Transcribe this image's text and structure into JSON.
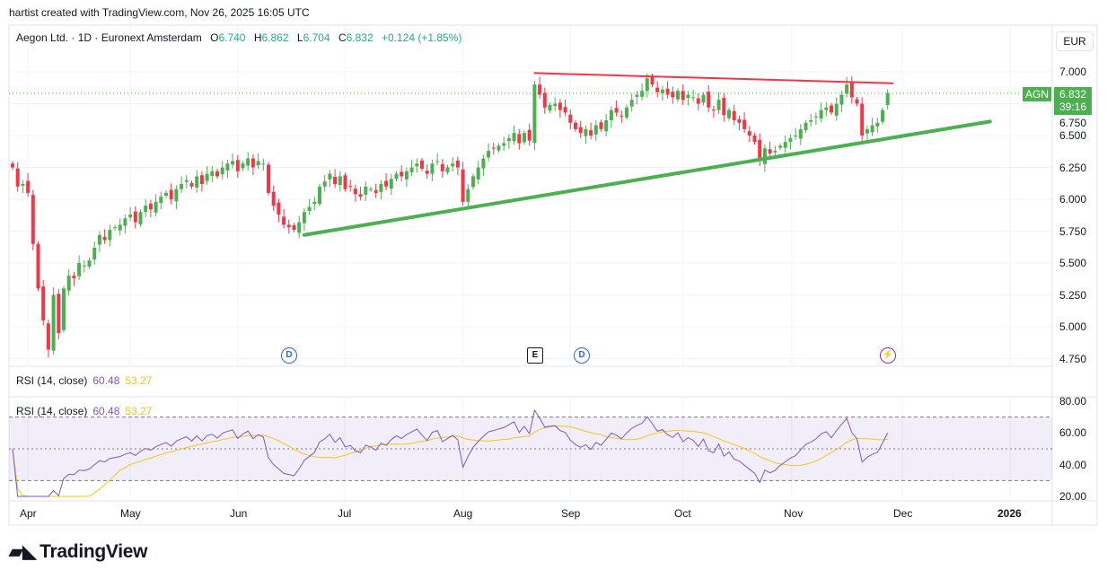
{
  "credit": "hartist created with TradingView.com, Nov 26, 2025 16:05 UTC",
  "header": {
    "symbol_title": "Aegon Ltd. · 1D · Euronext Amsterdam",
    "open_label": "O",
    "open": "6.740",
    "high_label": "H",
    "high": "6.862",
    "low_label": "L",
    "low": "6.704",
    "close_label": "C",
    "close": "6.832",
    "change": "+0.124 (+1.85%)"
  },
  "currency": "EUR",
  "last_price": {
    "ticker": "AGN",
    "price": "6.832",
    "countdown": "39:16"
  },
  "rsi": {
    "label": "RSI (14, close)",
    "value": "60.48",
    "ma_value": "53.27"
  },
  "price_ticks": [
    "7.000",
    "6.750",
    "6.500",
    "6.250",
    "6.000",
    "5.750",
    "5.500",
    "5.250",
    "5.000",
    "4.750"
  ],
  "rsi_ticks": [
    "80.00",
    "60.00",
    "40.00",
    "20.00"
  ],
  "x_labels": [
    "Apr",
    "May",
    "Jun",
    "Jul",
    "Aug",
    "Sep",
    "Oct",
    "Nov",
    "Dec",
    "2026"
  ],
  "events": {
    "dividend_1": "D",
    "earnings": "E",
    "dividend_2": "D",
    "split": "⚡"
  },
  "logo": "TradingView",
  "colors": {
    "up": "#4caf50",
    "down": "#f23645",
    "rsi": "#7e57c2",
    "rsi_ma": "#f5c518",
    "resistance": "#f23645",
    "support": "#4caf50"
  },
  "chart_data": {
    "type": "candlestick",
    "title": "Aegon Ltd. · 1D · Euronext Amsterdam",
    "start_date": "2025-03-27",
    "end_date": "2025-11-26",
    "ylim": [
      4.75,
      7.0
    ],
    "closes": [
      6.25,
      6.1,
      6.12,
      6.05,
      5.65,
      5.3,
      5.05,
      4.82,
      5.25,
      4.95,
      5.3,
      5.4,
      5.38,
      5.5,
      5.48,
      5.52,
      5.62,
      5.72,
      5.68,
      5.76,
      5.78,
      5.8,
      5.85,
      5.88,
      5.82,
      5.9,
      5.95,
      5.92,
      5.98,
      6.02,
      6.05,
      6.0,
      6.08,
      6.12,
      6.15,
      6.1,
      6.18,
      6.12,
      6.2,
      6.22,
      6.18,
      6.25,
      6.28,
      6.3,
      6.22,
      6.28,
      6.32,
      6.25,
      6.3,
      6.28,
      6.05,
      5.95,
      5.88,
      5.8,
      5.78,
      5.76,
      5.82,
      5.9,
      5.94,
      5.98,
      6.1,
      6.14,
      6.2,
      6.12,
      6.18,
      6.08,
      6.1,
      6.04,
      6.02,
      6.1,
      6.08,
      6.05,
      6.12,
      6.1,
      6.16,
      6.2,
      6.18,
      6.22,
      6.25,
      6.28,
      6.24,
      6.2,
      6.28,
      6.3,
      6.22,
      6.25,
      6.28,
      6.25,
      5.98,
      6.08,
      6.18,
      6.25,
      6.32,
      6.38,
      6.4,
      6.42,
      6.44,
      6.48,
      6.52,
      6.44,
      6.52,
      6.46,
      6.9,
      6.82,
      6.72,
      6.74,
      6.75,
      6.7,
      6.68,
      6.6,
      6.55,
      6.52,
      6.55,
      6.5,
      6.58,
      6.55,
      6.62,
      6.7,
      6.68,
      6.65,
      6.72,
      6.78,
      6.82,
      6.85,
      6.95,
      6.9,
      6.84,
      6.86,
      6.82,
      6.8,
      6.85,
      6.78,
      6.82,
      6.8,
      6.75,
      6.82,
      6.72,
      6.7,
      6.78,
      6.66,
      6.7,
      6.62,
      6.6,
      6.55,
      6.5,
      6.45,
      6.3,
      6.4,
      6.36,
      6.38,
      6.42,
      6.45,
      6.48,
      6.5,
      6.55,
      6.6,
      6.62,
      6.65,
      6.7,
      6.72,
      6.68,
      6.75,
      6.82,
      6.9,
      6.8,
      6.75,
      6.5,
      6.55,
      6.58,
      6.6,
      6.7,
      6.832
    ],
    "last_bar": {
      "open": 6.74,
      "high": 6.862,
      "low": 6.704,
      "close": 6.832
    },
    "trendlines": [
      {
        "name": "resistance",
        "from": {
          "bar": 102,
          "price": 6.99
        },
        "to": {
          "bar": 172,
          "price": 6.91
        }
      },
      {
        "name": "support",
        "from": {
          "bar": 57,
          "price": 5.72
        },
        "to": {
          "bar": 191,
          "price": 6.61
        }
      }
    ],
    "indicator": {
      "name": "RSI",
      "period": 14,
      "ma_period": 14,
      "bands": [
        70,
        30
      ],
      "ylim": [
        20,
        80
      ]
    }
  }
}
